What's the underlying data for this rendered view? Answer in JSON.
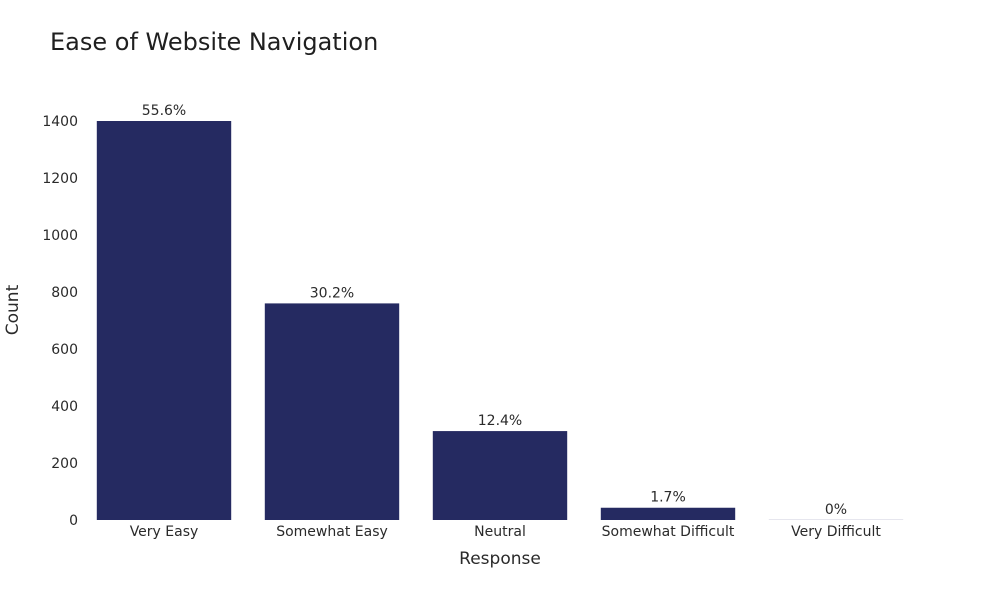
{
  "chart_data": {
    "type": "bar",
    "title": "Ease of Website Navigation",
    "xlabel": "Response",
    "ylabel": "Count",
    "categories": [
      "Very Easy",
      "Somewhat Easy",
      "Neutral",
      "Somewhat Difficult",
      "Very Difficult"
    ],
    "values": [
      1400,
      760,
      312,
      43,
      0
    ],
    "data_labels": [
      "55.6%",
      "30.2%",
      "12.4%",
      "1.7%",
      "0%"
    ],
    "ylim": [
      0,
      1400
    ],
    "yticks": [
      0,
      200,
      400,
      600,
      800,
      1000,
      1200,
      1400
    ],
    "bar_color": "#252a61",
    "grid": false,
    "legend": "none"
  }
}
